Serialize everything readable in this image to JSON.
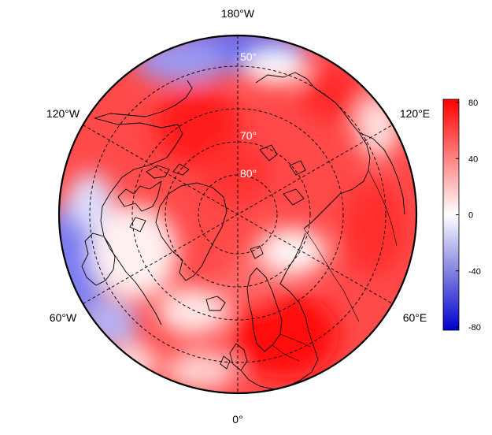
{
  "map": {
    "projection": "north-polar-stereographic",
    "min_latitude": 40,
    "longitude_labels": {
      "top": "180°W",
      "upper_left": "120°W",
      "upper_right": "120°E",
      "lower_left": "60°W",
      "lower_right": "60°E",
      "bottom": "0°"
    },
    "latitude_labels": [
      "50°",
      "70°",
      "80°"
    ],
    "graticule": "dashed",
    "field": {
      "description_colors": "diverging blue-white-red",
      "range": [
        -80,
        80
      ]
    }
  },
  "colorbar": {
    "ticks": [
      "80",
      "40",
      "0",
      "-40",
      "-80"
    ],
    "tick_values": [
      80,
      40,
      0,
      -40,
      -80
    ],
    "colors": {
      "high": "#ff0000",
      "mid": "#ffffff",
      "low": "#0000cc"
    }
  }
}
